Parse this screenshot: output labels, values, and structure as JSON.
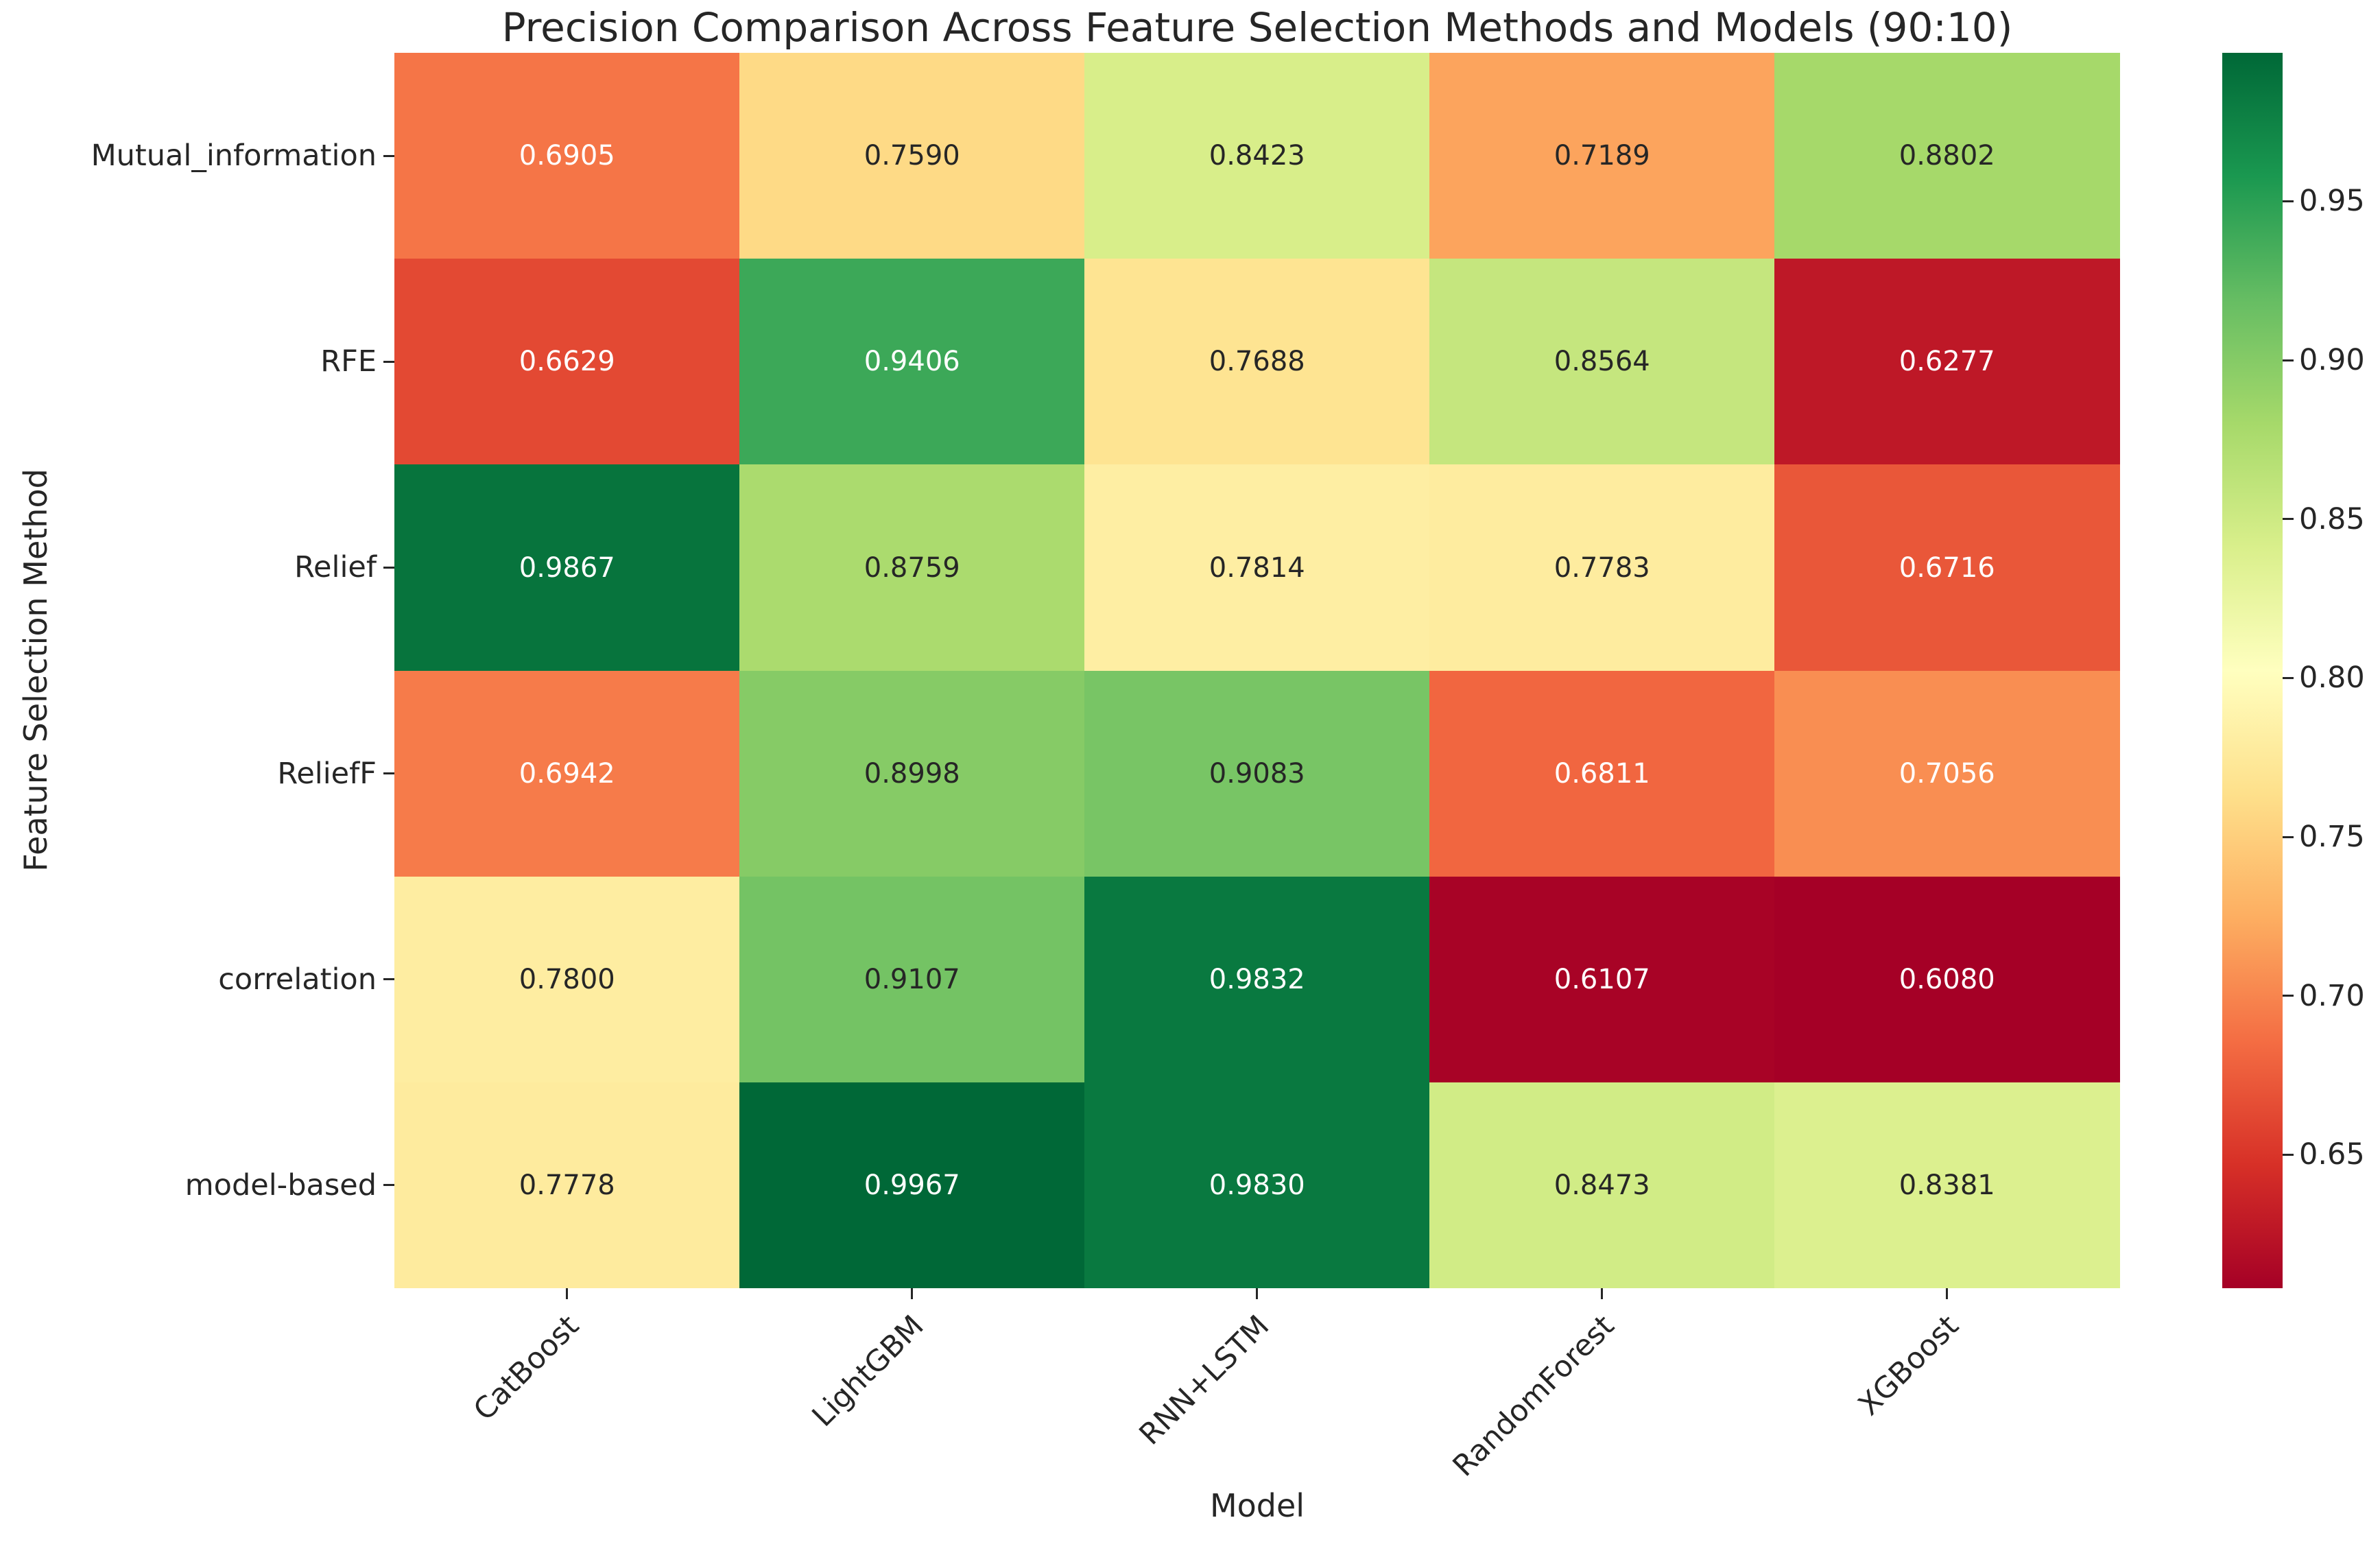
{
  "figure": {
    "title": "Precision Comparison Across Feature Selection Methods and Models (90:10)"
  },
  "chart_data": {
    "type": "heatmap",
    "title": "Precision Comparison Across Feature Selection Methods and Models (90:10)",
    "xlabel": "Model",
    "ylabel": "Feature Selection Method",
    "x_categories": [
      "CatBoost",
      "LightGBM",
      "RNN+LSTM",
      "RandomForest",
      "XGBoost"
    ],
    "y_categories": [
      "Mutual_information",
      "RFE",
      "Relief",
      "ReliefF",
      "correlation",
      "model-based"
    ],
    "values": [
      [
        0.6905,
        0.759,
        0.8423,
        0.7189,
        0.8802
      ],
      [
        0.6629,
        0.9406,
        0.7688,
        0.8564,
        0.6277
      ],
      [
        0.9867,
        0.8759,
        0.7814,
        0.7783,
        0.6716
      ],
      [
        0.6942,
        0.8998,
        0.9083,
        0.6811,
        0.7056
      ],
      [
        0.78,
        0.9107,
        0.9832,
        0.6107,
        0.608
      ],
      [
        0.7778,
        0.9967,
        0.983,
        0.8473,
        0.8381
      ]
    ],
    "value_decimals": 4,
    "vmin": 0.608,
    "vmax": 0.9967,
    "colorbar_ticks": [
      0.95,
      0.9,
      0.85,
      0.8,
      0.75,
      0.7,
      0.65
    ],
    "colorbar_tick_decimals": 2,
    "colormap": {
      "name": "RdYlGn",
      "anchors": [
        "#a50026",
        "#d73027",
        "#f46d43",
        "#fdae61",
        "#fee08b",
        "#ffffbf",
        "#d9ef8b",
        "#a6d96a",
        "#66bd63",
        "#1a9850",
        "#006837"
      ]
    },
    "annotation_text_colors": {
      "light": "#ffffff",
      "dark": "#262626"
    },
    "axis_text_color": "#262626",
    "legend_position": "right-colorbar",
    "grid": false
  }
}
